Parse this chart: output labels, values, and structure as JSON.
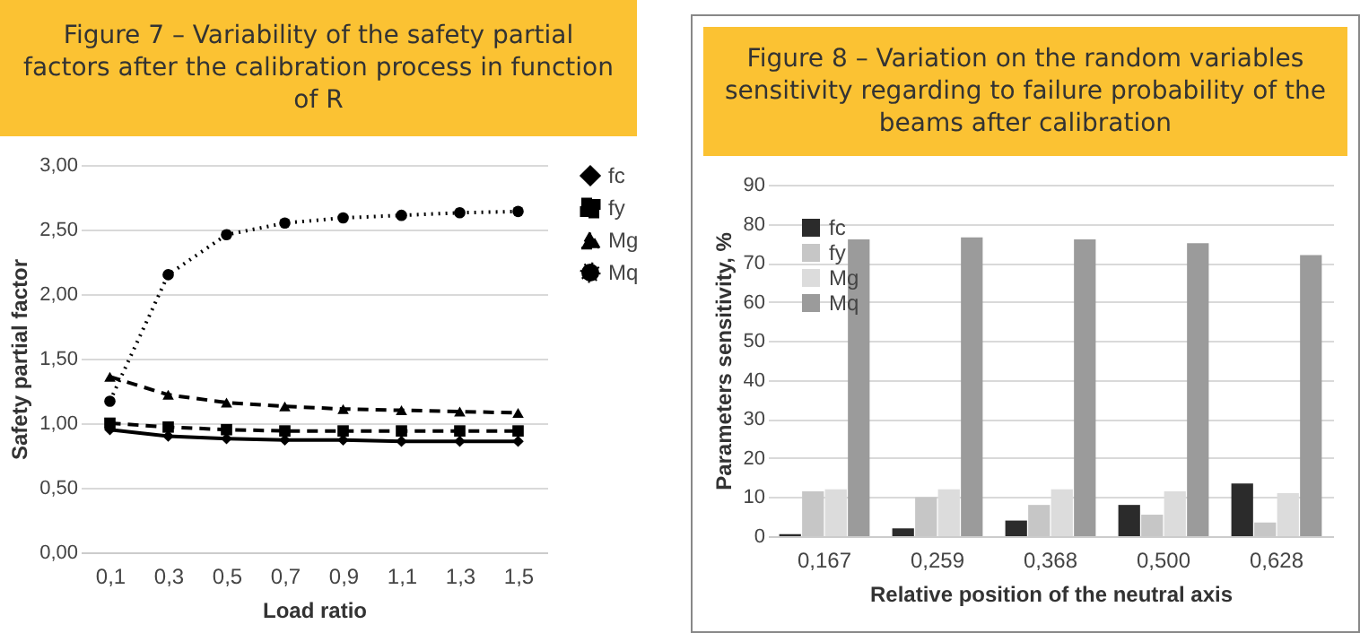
{
  "chart_data": [
    {
      "type": "line",
      "title": "Figure 7 – Variability of the safety partial factors after the calibration process in function of R",
      "xlabel": "Load ratio",
      "ylabel": "Safety partial factor",
      "categories": [
        "0,1",
        "0,3",
        "0,5",
        "0,7",
        "0,9",
        "1,1",
        "1,3",
        "1,5"
      ],
      "series": [
        {
          "name": "fc",
          "color": "#000000",
          "marker": "diamond",
          "line_style": "solid",
          "values": [
            0.95,
            0.9,
            0.88,
            0.87,
            0.87,
            0.86,
            0.86,
            0.86
          ]
        },
        {
          "name": "fy",
          "color": "#000000",
          "marker": "square",
          "line_style": "dashed",
          "values": [
            1.0,
            0.97,
            0.95,
            0.94,
            0.94,
            0.94,
            0.94,
            0.94
          ]
        },
        {
          "name": "Mg",
          "color": "#000000",
          "marker": "triangle",
          "line_style": "dashed",
          "values": [
            1.36,
            1.22,
            1.16,
            1.13,
            1.11,
            1.1,
            1.09,
            1.08
          ]
        },
        {
          "name": "Mq",
          "color": "#000000",
          "marker": "circle",
          "line_style": "dotted",
          "values": [
            1.17,
            2.15,
            2.46,
            2.55,
            2.59,
            2.61,
            2.63,
            2.64
          ]
        }
      ],
      "ylim": [
        0,
        3
      ],
      "yticks": [
        {
          "value": 0,
          "label": "0,00"
        },
        {
          "value": 0.5,
          "label": "0,50"
        },
        {
          "value": 1,
          "label": "1,00"
        },
        {
          "value": 1.5,
          "label": "1,50"
        },
        {
          "value": 2,
          "label": "2,00"
        },
        {
          "value": 2.5,
          "label": "2,50"
        },
        {
          "value": 3,
          "label": "3,00"
        }
      ],
      "grid": "y",
      "legend": "right"
    },
    {
      "type": "bar",
      "title": "Figure 8 – Variation on the random variables sensitivity regarding to failure probability of the beams after calibration",
      "xlabel": "Relative position of the neutral axis",
      "ylabel": "Parameters sensitivity, %",
      "categories": [
        "0,167",
        "0,259",
        "0,368",
        "0,500",
        "0,628"
      ],
      "series": [
        {
          "name": "fc",
          "color": "#2b2b2b",
          "values": [
            0.5,
            2,
            4,
            8,
            13.5
          ]
        },
        {
          "name": "fy",
          "color": "#c6c6c6",
          "values": [
            11.5,
            10,
            8,
            5.5,
            3.5
          ]
        },
        {
          "name": "Mg",
          "color": "#dcdcdc",
          "values": [
            12,
            12,
            12,
            11.5,
            11
          ]
        },
        {
          "name": "Mq",
          "color": "#9b9b9b",
          "values": [
            76,
            76.5,
            76,
            75,
            72
          ]
        }
      ],
      "ylim": [
        0,
        90
      ],
      "yticks": [
        0,
        10,
        20,
        30,
        40,
        50,
        60,
        70,
        80,
        90
      ],
      "grid": "y",
      "legend": "top left"
    }
  ]
}
